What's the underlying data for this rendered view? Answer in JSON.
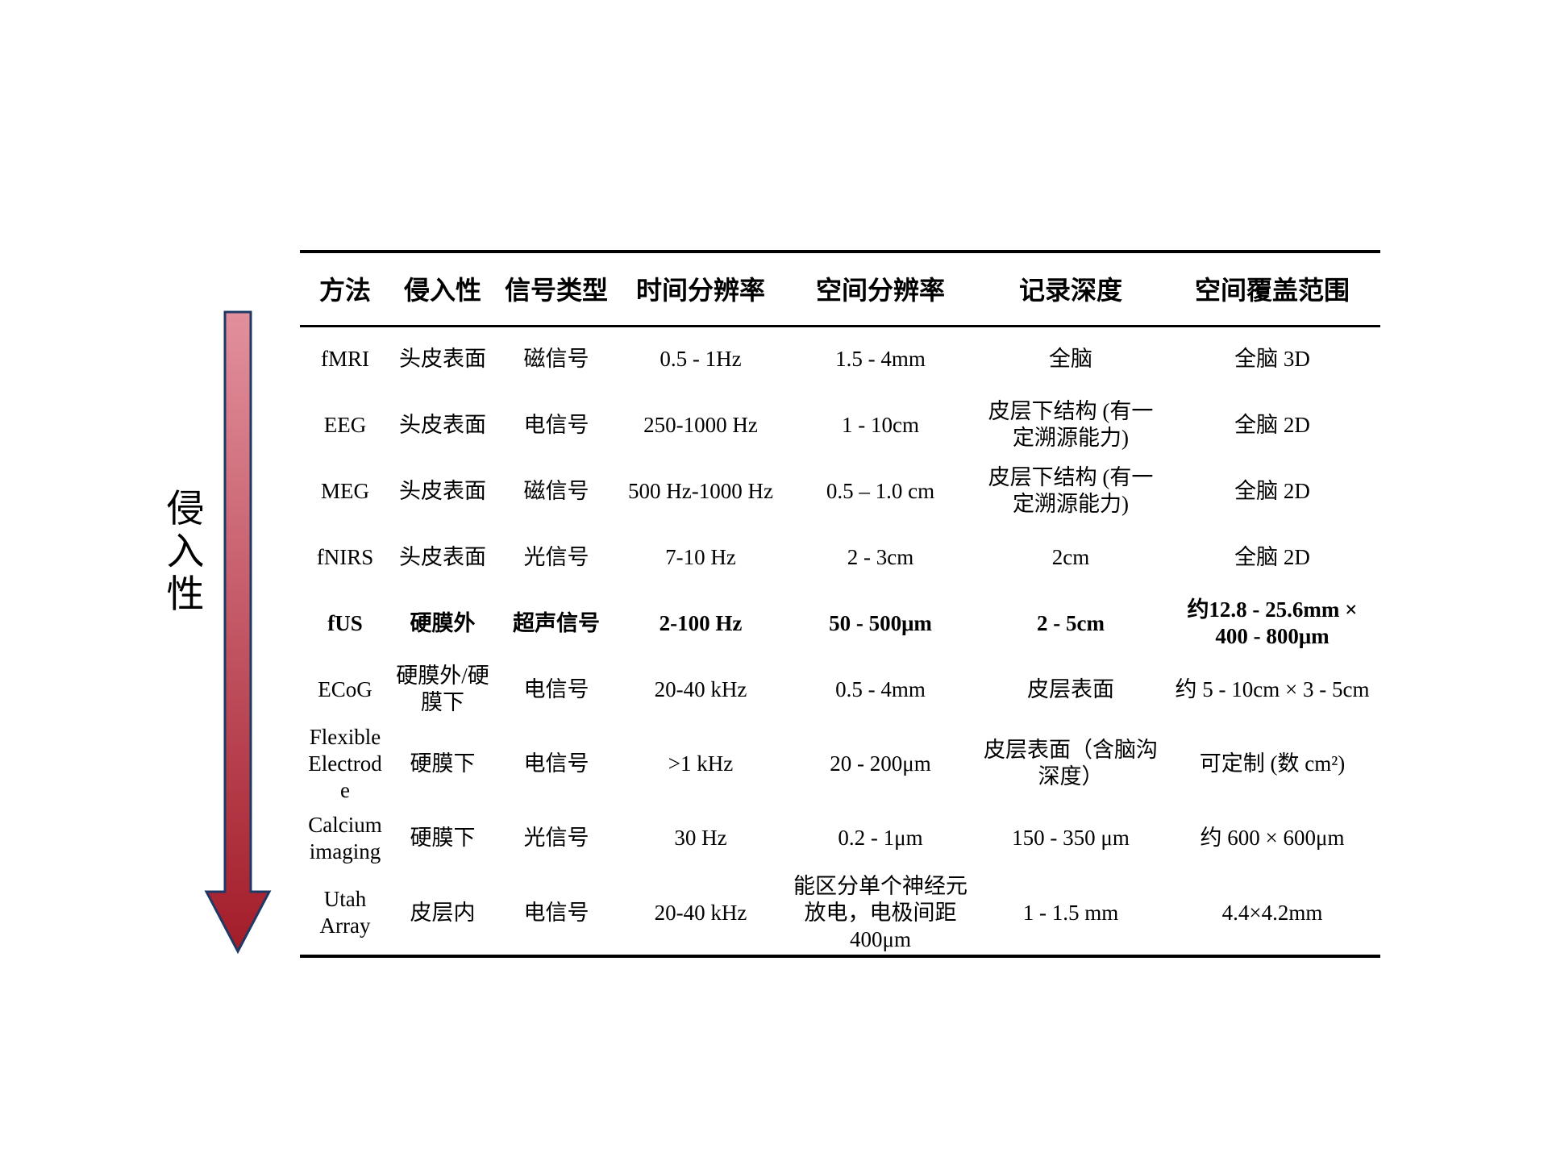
{
  "invasiveness_axis": {
    "label": "侵入性",
    "label_chars": [
      "侵",
      "入",
      "性"
    ],
    "arrow_gradient_top": "#e2909d",
    "arrow_gradient_bottom": "#a31c29",
    "arrow_outline_color": "#1f3864",
    "direction": "down"
  },
  "table": {
    "headers": [
      "方法",
      "侵入性",
      "信号类型",
      "时间分辨率",
      "空间分辨率",
      "记录深度",
      "空间覆盖范围"
    ],
    "rows": [
      {
        "bold": false,
        "cells": [
          "fMRI",
          "头皮表面",
          "磁信号",
          "0.5 - 1Hz",
          "1.5 - 4mm",
          "全脑",
          "全脑 3D"
        ]
      },
      {
        "bold": false,
        "cells": [
          "EEG",
          "头皮表面",
          "电信号",
          "250-1000 Hz",
          "1 - 10cm",
          "皮层下结构 (有一定溯源能力)",
          "全脑 2D"
        ]
      },
      {
        "bold": false,
        "cells": [
          "MEG",
          "头皮表面",
          "磁信号",
          "500 Hz-1000 Hz",
          "0.5 – 1.0 cm",
          "皮层下结构 (有一定溯源能力)",
          "全脑 2D"
        ]
      },
      {
        "bold": false,
        "cells": [
          "fNIRS",
          "头皮表面",
          "光信号",
          "7-10 Hz",
          "2 - 3cm",
          "2cm",
          "全脑 2D"
        ]
      },
      {
        "bold": true,
        "cells": [
          "fUS",
          "硬膜外",
          "超声信号",
          "2-100 Hz",
          "50 - 500μm",
          "2 - 5cm",
          "约12.8 - 25.6mm × 400 - 800μm"
        ]
      },
      {
        "bold": false,
        "cells": [
          "ECoG",
          "硬膜外/硬膜下",
          "电信号",
          "20-40 kHz",
          "0.5 - 4mm",
          "皮层表面",
          "约 5 - 10cm × 3 - 5cm"
        ]
      },
      {
        "bold": false,
        "cells": [
          "Flexible Electrode",
          "硬膜下",
          "电信号",
          ">1 kHz",
          "20 - 200μm",
          "皮层表面（含脑沟深度）",
          "可定制 (数 cm²)"
        ]
      },
      {
        "bold": false,
        "cells": [
          "Calcium imaging",
          "硬膜下",
          "光信号",
          "30 Hz",
          "0.2 - 1μm",
          "150 - 350 μm",
          "约 600 × 600μm"
        ]
      },
      {
        "bold": false,
        "cells": [
          "Utah Array",
          "皮层内",
          "电信号",
          "20-40 kHz",
          "能区分单个神经元放电，电极间距400μm",
          "1 - 1.5 mm",
          "4.4×4.2mm"
        ]
      }
    ]
  }
}
